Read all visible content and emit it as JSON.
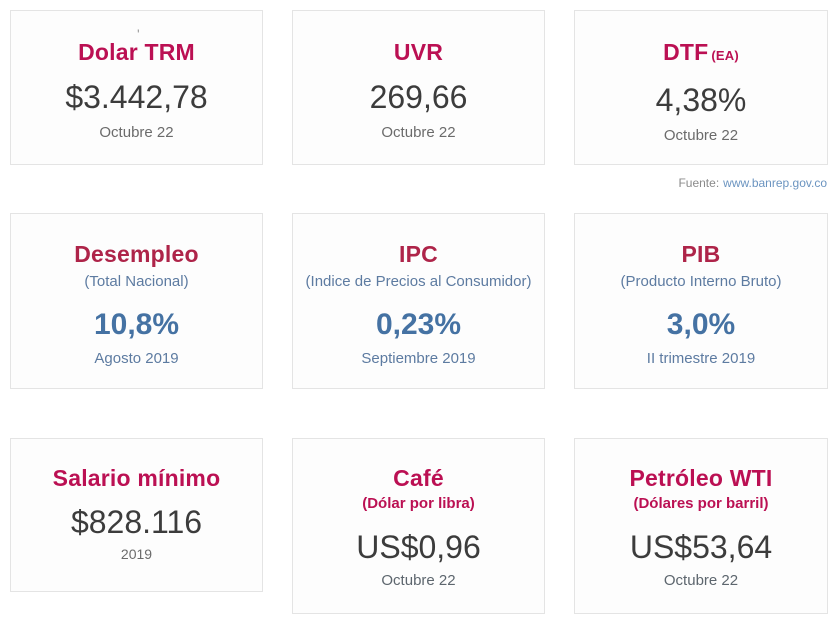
{
  "colors": {
    "title_pink": "#bb1053",
    "title_crimson": "#ae2449",
    "value_dark": "#3c3c3c",
    "value_blue": "#4572a3",
    "blue_muted": "#5d7ba1",
    "date_gray": "#6b6b6b",
    "date_slate": "#5d666e",
    "link_blue": "#6b94c0",
    "label_gray": "#8a8a8a",
    "card_border": "#e4e4e4"
  },
  "stray_mark": "'",
  "source": {
    "label": "Fuente:",
    "link": "www.banrep.gov.co"
  },
  "cards": [
    {
      "id": "dolar-trm",
      "title": "Dolar TRM",
      "value": "$3.442,78",
      "date": "Octubre 22"
    },
    {
      "id": "uvr",
      "title": "UVR",
      "value": "269,66",
      "date": "Octubre 22"
    },
    {
      "id": "dtf",
      "title": "DTF",
      "title_suffix": "(EA)",
      "value": "4,38%",
      "date": "Octubre 22"
    },
    {
      "id": "desempleo",
      "title": "Desempleo",
      "subtitle": "(Total Nacional)",
      "value": "10,8%",
      "date": "Agosto 2019"
    },
    {
      "id": "ipc",
      "title": "IPC",
      "subtitle": "(Indice de Precios al Consumidor)",
      "value": "0,23%",
      "date": "Septiembre 2019"
    },
    {
      "id": "pib",
      "title": "PIB",
      "subtitle": "(Producto Interno Bruto)",
      "value": "3,0%",
      "date": "II trimestre 2019"
    },
    {
      "id": "salario-minimo",
      "title": "Salario mínimo",
      "value": "$828.116",
      "date": "2019"
    },
    {
      "id": "cafe",
      "title": "Café",
      "subtitle": "(Dólar por libra)",
      "value": "US$0,96",
      "date": "Octubre 22"
    },
    {
      "id": "petroleo-wti",
      "title": "Petróleo WTI",
      "subtitle": "(Dólares por barril)",
      "value": "US$53,64",
      "date": "Octubre 22"
    }
  ]
}
